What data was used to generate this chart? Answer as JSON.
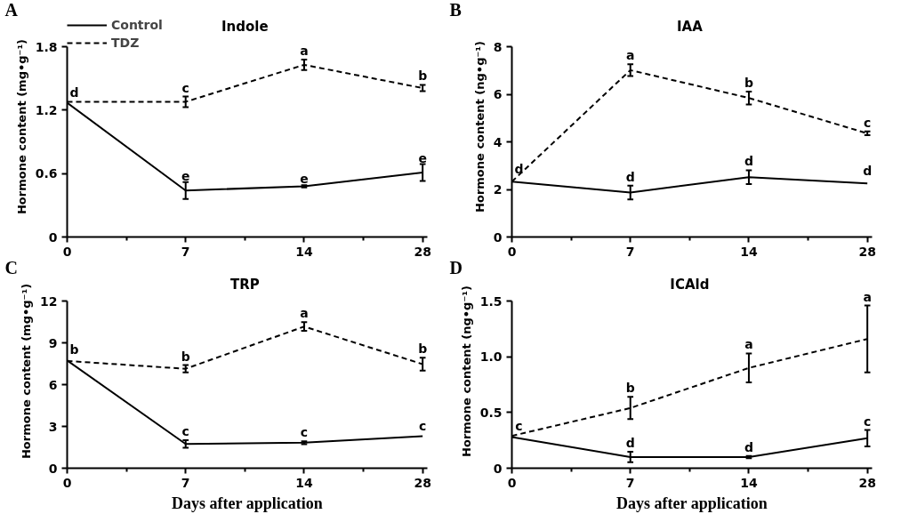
{
  "chart_data": [
    {
      "type": "line",
      "title": "Indole",
      "ylabel": "Hormone content (mg•g⁻¹)",
      "categories": [
        "0",
        "7",
        "14",
        "28"
      ],
      "ylim": [
        0,
        1.8
      ],
      "yticks": [
        0,
        0.6,
        1.2,
        1.8
      ],
      "grid": false,
      "legend": "top left",
      "marker": "none",
      "series": [
        {
          "name": "Control",
          "color": "#000000",
          "line_style": "solid",
          "values": [
            1.27,
            0.44,
            0.48,
            0.61
          ],
          "errors": [
            null,
            0.08,
            0.01,
            0.08
          ]
        },
        {
          "name": "TDZ",
          "color": "#000000",
          "line_style": "dashed",
          "values": [
            1.28,
            1.28,
            1.63,
            1.41
          ],
          "errors": [
            null,
            0.05,
            0.05,
            0.03
          ]
        }
      ],
      "annotations": [
        "A",
        {
          "text": "d",
          "x": "0",
          "y": 1.28
        },
        {
          "text": "c",
          "x": "7",
          "y": 1.33
        },
        {
          "text": "a",
          "x": "14",
          "y": 1.68
        },
        {
          "text": "b",
          "x": "28",
          "y": 1.44
        },
        {
          "text": "e",
          "x": "7",
          "y": 0.52
        },
        {
          "text": "e",
          "x": "14",
          "y": 0.49
        },
        {
          "text": "e",
          "x": "28",
          "y": 0.69
        }
      ]
    },
    {
      "type": "line",
      "title": "IAA",
      "ylabel": "Hormone content (ng•g⁻¹)",
      "categories": [
        "0",
        "7",
        "14",
        "28"
      ],
      "ylim": [
        0,
        8
      ],
      "yticks": [
        0,
        2,
        4,
        6,
        8
      ],
      "grid": false,
      "legend": false,
      "marker": "none",
      "series": [
        {
          "color": "#000000",
          "line_style": "solid",
          "values": [
            2.33,
            1.87,
            2.52,
            2.25
          ],
          "errors": [
            null,
            0.29,
            0.29,
            null
          ]
        },
        {
          "color": "#000000",
          "line_style": "dashed",
          "values": [
            2.33,
            7.02,
            5.85,
            4.36
          ],
          "errors": [
            null,
            0.25,
            0.27,
            0.08
          ]
        }
      ],
      "annotations": [
        "B",
        {
          "text": "d",
          "x": "0",
          "y": 2.5
        },
        {
          "text": "a",
          "x": "7",
          "y": 7.27
        },
        {
          "text": "b",
          "x": "14",
          "y": 6.12
        },
        {
          "text": "c",
          "x": "28",
          "y": 4.44
        },
        {
          "text": "d",
          "x": "7",
          "y": 2.16
        },
        {
          "text": "d",
          "x": "14",
          "y": 2.81
        },
        {
          "text": "d",
          "x": "28",
          "y": 2.4
        }
      ]
    },
    {
      "type": "line",
      "title": "TRP",
      "ylabel": "Hormone content (mg•g⁻¹)",
      "xlabel": "Days after application",
      "categories": [
        "0",
        "7",
        "14",
        "28"
      ],
      "ylim": [
        0,
        12
      ],
      "yticks": [
        0,
        3,
        6,
        9,
        12
      ],
      "grid": false,
      "legend": false,
      "marker": "none",
      "series": [
        {
          "color": "#000000",
          "line_style": "solid",
          "values": [
            7.74,
            1.74,
            1.83,
            2.3
          ],
          "errors": [
            null,
            0.27,
            0.1,
            null
          ]
        },
        {
          "color": "#000000",
          "line_style": "dashed",
          "values": [
            7.7,
            7.14,
            10.17,
            7.47
          ],
          "errors": [
            null,
            0.26,
            0.31,
            0.46
          ]
        }
      ],
      "annotations": [
        "C",
        {
          "text": "b",
          "x": "0",
          "y": 7.9
        },
        {
          "text": "b",
          "x": "7",
          "y": 7.4
        },
        {
          "text": "a",
          "x": "14",
          "y": 10.48
        },
        {
          "text": "b",
          "x": "28",
          "y": 7.93
        },
        {
          "text": "c",
          "x": "7",
          "y": 2.01
        },
        {
          "text": "c",
          "x": "14",
          "y": 1.93
        },
        {
          "text": "c",
          "x": "28",
          "y": 2.4
        }
      ]
    },
    {
      "type": "line",
      "title": "ICAld",
      "ylabel": "Hormone content (ng•g⁻¹)",
      "xlabel": "Days after application",
      "categories": [
        "0",
        "7",
        "14",
        "28"
      ],
      "ylim": [
        0,
        1.5
      ],
      "yticks": [
        0,
        {
          "value": 0.5,
          "label": "0.5"
        },
        {
          "value": 1,
          "label": "1.0"
        },
        1.5
      ],
      "grid": false,
      "legend": false,
      "marker": "none",
      "series": [
        {
          "color": "#000000",
          "line_style": "solid",
          "values": [
            0.28,
            0.1,
            0.1,
            0.27
          ],
          "errors": [
            null,
            0.047,
            0.01,
            0.074
          ]
        },
        {
          "color": "#000000",
          "line_style": "dashed",
          "values": [
            0.29,
            0.54,
            0.9,
            1.16
          ],
          "errors": [
            null,
            0.1,
            0.13,
            0.3
          ]
        }
      ],
      "annotations": [
        "D",
        {
          "text": "c",
          "x": "0",
          "y": 0.3
        },
        {
          "text": "b",
          "x": "7",
          "y": 0.64
        },
        {
          "text": "a",
          "x": "14",
          "y": 1.03
        },
        {
          "text": "a",
          "x": "28",
          "y": 1.46
        },
        {
          "text": "d",
          "x": "7",
          "y": 0.15
        },
        {
          "text": "d",
          "x": "14",
          "y": 0.11
        },
        {
          "text": "c",
          "x": "28",
          "y": 0.34
        }
      ]
    }
  ]
}
